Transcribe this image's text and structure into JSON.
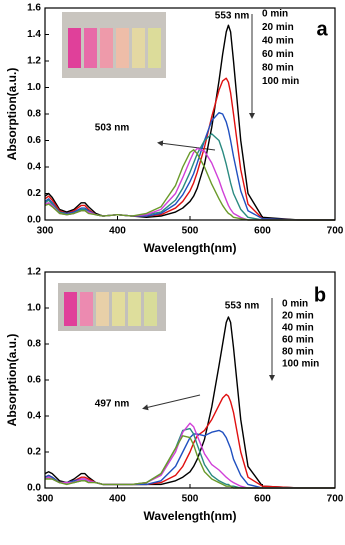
{
  "chart_data": [
    {
      "type": "line",
      "panel_label": "a",
      "x_label": "Wavelength(nm)",
      "y_label": "Absorption(a.u.)",
      "annotations": [
        "553 nm",
        "503 nm"
      ],
      "x": [
        300,
        305,
        310,
        320,
        330,
        340,
        350,
        355,
        360,
        370,
        380,
        400,
        420,
        440,
        460,
        480,
        490,
        500,
        505,
        510,
        520,
        530,
        540,
        545,
        550,
        553,
        556,
        560,
        570,
        580,
        600,
        650,
        700
      ],
      "xlim": [
        300,
        700
      ],
      "xticks": [
        300,
        400,
        500,
        600,
        700
      ],
      "ylim": [
        0,
        1.6
      ],
      "yticks": [
        {
          "value": 0,
          "label": "0.0"
        },
        0.2,
        0.4,
        0.6,
        0.8,
        {
          "value": 1,
          "label": "1.0"
        },
        1.2,
        1.4,
        1.6
      ],
      "series": [
        {
          "name": "0 min",
          "color": "#000000",
          "values": [
            0.18,
            0.2,
            0.17,
            0.08,
            0.06,
            0.08,
            0.13,
            0.13,
            0.1,
            0.05,
            0.03,
            0.04,
            0.03,
            0.02,
            0.03,
            0.06,
            0.09,
            0.14,
            0.18,
            0.24,
            0.42,
            0.7,
            1.05,
            1.25,
            1.42,
            1.47,
            1.42,
            1.2,
            0.6,
            0.2,
            0.02,
            0,
            0
          ]
        },
        {
          "name": "20 min",
          "color": "#e01010",
          "values": [
            0.16,
            0.18,
            0.15,
            0.07,
            0.05,
            0.07,
            0.11,
            0.11,
            0.08,
            0.04,
            0.03,
            0.04,
            0.03,
            0.03,
            0.04,
            0.09,
            0.14,
            0.22,
            0.28,
            0.36,
            0.55,
            0.78,
            0.98,
            1.05,
            1.07,
            1.04,
            0.96,
            0.8,
            0.38,
            0.12,
            0.01,
            0,
            0
          ]
        },
        {
          "name": "40 min",
          "color": "#2050c0",
          "values": [
            0.14,
            0.16,
            0.13,
            0.06,
            0.05,
            0.06,
            0.09,
            0.09,
            0.07,
            0.04,
            0.03,
            0.04,
            0.03,
            0.03,
            0.05,
            0.12,
            0.19,
            0.29,
            0.35,
            0.43,
            0.6,
            0.75,
            0.81,
            0.8,
            0.74,
            0.68,
            0.6,
            0.48,
            0.22,
            0.07,
            0.01,
            0,
            0
          ]
        },
        {
          "name": "60 min",
          "color": "#2a8a80",
          "values": [
            0.13,
            0.15,
            0.12,
            0.06,
            0.04,
            0.05,
            0.08,
            0.08,
            0.06,
            0.04,
            0.03,
            0.04,
            0.03,
            0.04,
            0.06,
            0.15,
            0.24,
            0.36,
            0.43,
            0.5,
            0.6,
            0.65,
            0.6,
            0.52,
            0.42,
            0.35,
            0.28,
            0.2,
            0.08,
            0.02,
            0,
            0,
            0
          ]
        },
        {
          "name": "80 min",
          "color": "#d040d8",
          "values": [
            0.12,
            0.13,
            0.11,
            0.05,
            0.04,
            0.05,
            0.07,
            0.07,
            0.06,
            0.04,
            0.03,
            0.04,
            0.03,
            0.04,
            0.08,
            0.2,
            0.32,
            0.45,
            0.51,
            0.54,
            0.52,
            0.43,
            0.3,
            0.22,
            0.15,
            0.11,
            0.08,
            0.05,
            0.02,
            0,
            0,
            0,
            0
          ]
        },
        {
          "name": "100 min",
          "color": "#6a9a2a",
          "values": [
            0.11,
            0.12,
            0.1,
            0.05,
            0.04,
            0.05,
            0.07,
            0.07,
            0.05,
            0.04,
            0.03,
            0.04,
            0.03,
            0.05,
            0.1,
            0.26,
            0.4,
            0.51,
            0.53,
            0.5,
            0.4,
            0.27,
            0.16,
            0.11,
            0.07,
            0.05,
            0.04,
            0.02,
            0.01,
            0,
            0,
            0,
            0
          ]
        }
      ]
    },
    {
      "type": "line",
      "panel_label": "b",
      "x_label": "Wavelength(nm)",
      "y_label": "Absorption(a.u.)",
      "annotations": [
        "553 nm",
        "497 nm"
      ],
      "x": [
        300,
        305,
        310,
        320,
        330,
        340,
        350,
        355,
        360,
        370,
        380,
        400,
        420,
        440,
        460,
        480,
        490,
        500,
        505,
        510,
        520,
        530,
        540,
        545,
        550,
        553,
        556,
        560,
        570,
        580,
        600,
        650,
        700
      ],
      "xlim": [
        300,
        700
      ],
      "xticks": [
        300,
        400,
        500,
        600,
        700
      ],
      "ylim": [
        0,
        1.2
      ],
      "yticks": [
        {
          "value": 0,
          "label": "0.0"
        },
        0.2,
        0.4,
        0.6,
        0.8,
        {
          "value": 1,
          "label": "1.0"
        },
        1.2
      ],
      "series": [
        {
          "name": "0 min",
          "color": "#000000",
          "values": [
            0.08,
            0.09,
            0.08,
            0.04,
            0.03,
            0.05,
            0.08,
            0.08,
            0.06,
            0.03,
            0.02,
            0.02,
            0.02,
            0.02,
            0.02,
            0.04,
            0.06,
            0.09,
            0.12,
            0.16,
            0.27,
            0.45,
            0.68,
            0.8,
            0.92,
            0.95,
            0.92,
            0.78,
            0.38,
            0.12,
            0.01,
            0,
            0
          ]
        },
        {
          "name": "20 min",
          "color": "#e01010",
          "values": [
            0.06,
            0.07,
            0.06,
            0.03,
            0.03,
            0.04,
            0.06,
            0.06,
            0.05,
            0.03,
            0.02,
            0.02,
            0.02,
            0.02,
            0.03,
            0.07,
            0.12,
            0.2,
            0.25,
            0.29,
            0.32,
            0.38,
            0.46,
            0.5,
            0.52,
            0.51,
            0.48,
            0.42,
            0.2,
            0.06,
            0.01,
            0,
            0
          ]
        },
        {
          "name": "40 min",
          "color": "#2050c0",
          "values": [
            0.06,
            0.07,
            0.06,
            0.03,
            0.03,
            0.04,
            0.05,
            0.05,
            0.04,
            0.03,
            0.02,
            0.02,
            0.02,
            0.02,
            0.04,
            0.12,
            0.2,
            0.28,
            0.3,
            0.3,
            0.29,
            0.31,
            0.32,
            0.31,
            0.28,
            0.25,
            0.22,
            0.16,
            0.07,
            0.02,
            0,
            0,
            0
          ]
        },
        {
          "name": "60 min",
          "color": "#2a8a80",
          "values": [
            0.05,
            0.06,
            0.05,
            0.03,
            0.03,
            0.03,
            0.04,
            0.04,
            0.04,
            0.03,
            0.02,
            0.02,
            0.02,
            0.03,
            0.08,
            0.22,
            0.32,
            0.33,
            0.3,
            0.24,
            0.13,
            0.07,
            0.04,
            0.03,
            0.02,
            0.02,
            0.01,
            0.01,
            0,
            0,
            0,
            0,
            0
          ]
        },
        {
          "name": "80 min",
          "color": "#d040d8",
          "values": [
            0.05,
            0.06,
            0.05,
            0.03,
            0.03,
            0.03,
            0.05,
            0.05,
            0.04,
            0.03,
            0.02,
            0.02,
            0.02,
            0.03,
            0.07,
            0.2,
            0.31,
            0.36,
            0.34,
            0.29,
            0.19,
            0.13,
            0.1,
            0.08,
            0.06,
            0.05,
            0.04,
            0.03,
            0.01,
            0,
            0,
            0,
            0
          ]
        },
        {
          "name": "100 min",
          "color": "#6a9a2a",
          "values": [
            0.05,
            0.05,
            0.05,
            0.03,
            0.02,
            0.03,
            0.04,
            0.04,
            0.03,
            0.03,
            0.02,
            0.02,
            0.02,
            0.03,
            0.08,
            0.22,
            0.29,
            0.28,
            0.24,
            0.18,
            0.09,
            0.05,
            0.03,
            0.02,
            0.01,
            0.01,
            0.01,
            0,
            0,
            0,
            0,
            0,
            0
          ]
        }
      ]
    }
  ]
}
